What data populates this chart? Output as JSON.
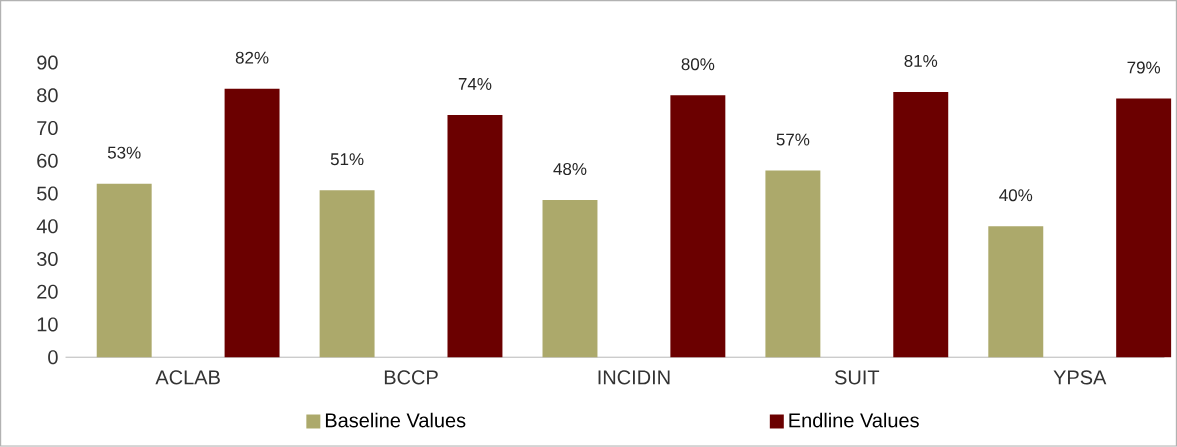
{
  "chart_data": {
    "type": "bar",
    "categories": [
      "ACLAB",
      "BCCP",
      "INCIDIN",
      "SUIT",
      "YPSA"
    ],
    "series": [
      {
        "name": "Baseline Values",
        "color": "#aca96b",
        "values": [
          53,
          51,
          48,
          57,
          40
        ],
        "value_labels": [
          "53%",
          "51%",
          "48%",
          "57%",
          "40%"
        ]
      },
      {
        "name": "Endline Values",
        "color": "#6b0000",
        "values": [
          82,
          74,
          80,
          81,
          79
        ],
        "value_labels": [
          "82%",
          "74%",
          "80%",
          "81%",
          "79%"
        ]
      }
    ],
    "ylim": [
      0,
      90
    ],
    "yticks": [
      0,
      10,
      20,
      30,
      40,
      50,
      60,
      70,
      80,
      90
    ],
    "grid": false,
    "legend": "bottom"
  }
}
